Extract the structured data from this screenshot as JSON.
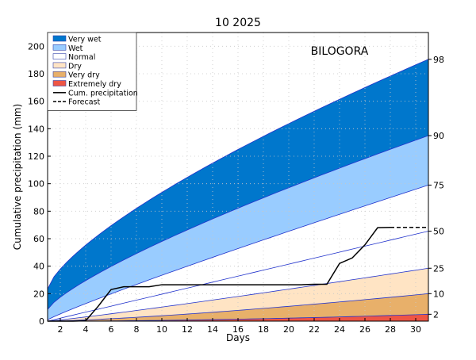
{
  "chart_data": {
    "type": "area",
    "title": "10 2025",
    "station": "BILOGORA",
    "xlabel": "Days",
    "ylabel": "Cumulative precipitation (mm)",
    "xlim": [
      1,
      31
    ],
    "ylim": [
      0,
      210
    ],
    "xticks": [
      2,
      4,
      6,
      8,
      10,
      12,
      14,
      16,
      18,
      20,
      22,
      24,
      26,
      28,
      30
    ],
    "yticks": [
      0,
      20,
      40,
      60,
      80,
      100,
      120,
      140,
      160,
      180,
      200
    ],
    "grid": true,
    "legend_position": "top-left",
    "percentile_labels": [
      "98",
      "90",
      "75",
      "50",
      "25",
      "10",
      "2"
    ],
    "curves": {
      "p2": {
        "label": "2",
        "start": 0,
        "end": 5,
        "exp": 1.8
      },
      "p10": {
        "label": "10",
        "start": 0,
        "end": 20,
        "exp": 1.35
      },
      "p25": {
        "label": "25",
        "start": 0,
        "end": 38.5,
        "exp": 1.1
      },
      "p50": {
        "label": "50",
        "start": 0,
        "end": 65.5,
        "exp": 1.0
      },
      "p75": {
        "label": "75",
        "start": 1,
        "end": 99,
        "exp": 0.92
      },
      "p90": {
        "label": "90",
        "start": 8.5,
        "end": 135,
        "exp": 0.78
      },
      "p98": {
        "label": "98",
        "start": 23.5,
        "end": 190.5,
        "exp": 0.72
      }
    },
    "bands": [
      {
        "name": "Very wet",
        "from": "p90",
        "to": "p98",
        "color": "#0077cc"
      },
      {
        "name": "Wet",
        "from": "p75",
        "to": "p90",
        "color": "#99ccff"
      },
      {
        "name": "Normal",
        "from": "p25",
        "to": "p75",
        "color": "#ffffff"
      },
      {
        "name": "Dry",
        "from": "p10",
        "to": "p25",
        "color": "#ffe4c4"
      },
      {
        "name": "Very dry",
        "from": "p2",
        "to": "p10",
        "color": "#e8b06a"
      },
      {
        "name": "Extremely dry",
        "from": "zero",
        "to": "p2",
        "color": "#ee5544"
      }
    ],
    "series": [
      {
        "name": "Cum. precipitation",
        "style": "solid",
        "color": "#000000",
        "x": [
          1,
          2,
          3,
          4,
          5,
          6,
          7,
          8,
          9,
          10,
          11,
          12,
          13,
          14,
          15,
          16,
          17,
          18,
          19,
          20,
          21,
          22,
          23,
          24,
          25,
          26,
          27,
          28
        ],
        "y": [
          0,
          0,
          0,
          0.3,
          11,
          23,
          25,
          25,
          25,
          26.5,
          26.5,
          26.5,
          26.5,
          26.5,
          26.5,
          26.5,
          26.5,
          26.5,
          26.5,
          26.5,
          26.5,
          26.8,
          26.8,
          42,
          46,
          55.5,
          68,
          68.2
        ]
      },
      {
        "name": "Forecast",
        "style": "dashed",
        "color": "#000000",
        "x": [
          28,
          29,
          30,
          31
        ],
        "y": [
          68.2,
          68.2,
          68.2,
          68.2
        ]
      }
    ],
    "legend": [
      {
        "label": "Very wet",
        "kind": "patch",
        "color": "#0077cc"
      },
      {
        "label": "Wet",
        "kind": "patch",
        "color": "#99ccff"
      },
      {
        "label": "Normal",
        "kind": "patch",
        "color": "#ffffff"
      },
      {
        "label": "Dry",
        "kind": "patch",
        "color": "#ffe4c4"
      },
      {
        "label": "Very dry",
        "kind": "patch",
        "color": "#e8b06a"
      },
      {
        "label": "Extremely dry",
        "kind": "patch",
        "color": "#ee5544"
      },
      {
        "label": "Cum. precipitation",
        "kind": "line",
        "color": "#000000"
      },
      {
        "label": "Forecast",
        "kind": "dashed",
        "color": "#000000"
      }
    ]
  }
}
